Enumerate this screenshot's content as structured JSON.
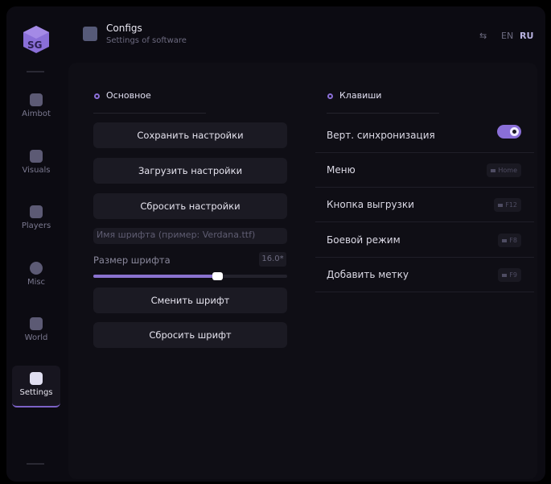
{
  "header": {
    "title": "Configs",
    "subtitle": "Settings of software",
    "lang": [
      "EN",
      "RU"
    ],
    "active_lang": "RU"
  },
  "sidebar": {
    "items": [
      {
        "label": "Aimbot",
        "icon": "skull-icon"
      },
      {
        "label": "Visuals",
        "icon": "vr-glasses-icon"
      },
      {
        "label": "Players",
        "icon": "users-icon"
      },
      {
        "label": "Misc",
        "icon": "dots-icon"
      },
      {
        "label": "World",
        "icon": "briefcase-icon"
      },
      {
        "label": "Settings",
        "icon": "list-icon",
        "active": true
      }
    ]
  },
  "main": {
    "section_title": "Основное",
    "buttons": [
      "Сохранить настройки",
      "Загрузить настройки",
      "Сбросить настройки"
    ],
    "font_input": {
      "placeholder": "Имя шрифта (пример: Verdana.ttf)",
      "value": ""
    },
    "font_size": {
      "label": "Размер шрифта",
      "value": "16.0*",
      "fraction": 0.64
    },
    "font_buttons": [
      "Сменить шрифт",
      "Сбросить шрифт"
    ]
  },
  "keys": {
    "section_title": "Клавиши",
    "vsync": {
      "label": "Верт. синхронизация",
      "on": true
    },
    "rows": [
      {
        "label": "Меню",
        "key": "Home"
      },
      {
        "label": "Кнопка выгрузки",
        "key": "F12"
      },
      {
        "label": "Боевой режим",
        "key": "F8"
      },
      {
        "label": "Добавить метку",
        "key": "F9"
      }
    ]
  },
  "colors": {
    "accent": "#8a6fd8",
    "background": "#0c0b12"
  }
}
